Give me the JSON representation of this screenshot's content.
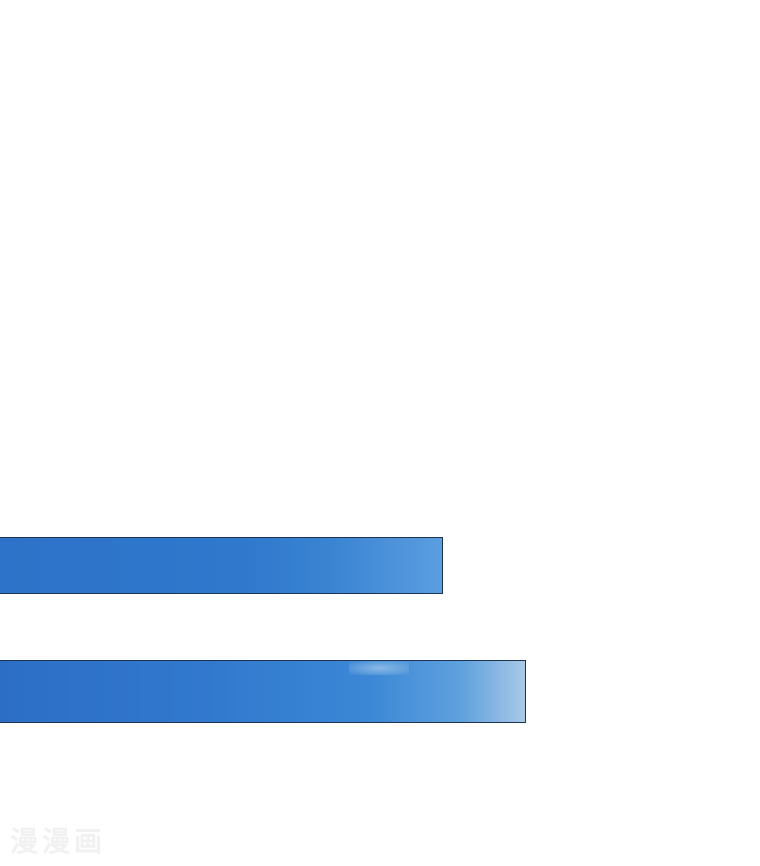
{
  "panels": [
    {
      "type": "sky-panel",
      "color": "#2f78cc"
    },
    {
      "type": "sky-panel",
      "color": "#3179ce"
    }
  ],
  "watermark": {
    "text": "漫漫画"
  }
}
